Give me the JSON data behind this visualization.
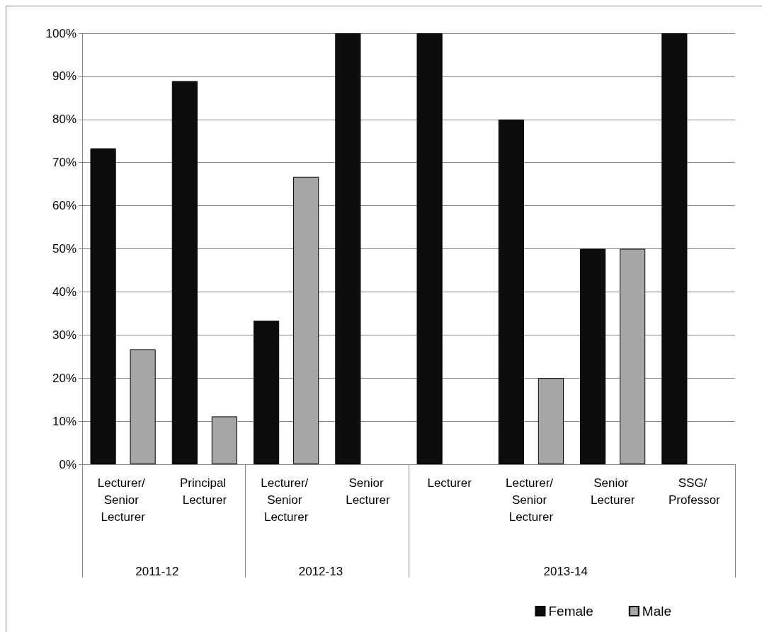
{
  "chart_data": {
    "type": "bar",
    "categories": [
      "Lecturer/ Senior Lecturer",
      "Principal Lecturer",
      "Lecturer/ Senior Lecturer",
      "Senior Lecturer",
      "Lecturer",
      "Lecturer/ Senior Lecturer",
      "Senior Lecturer",
      "SSG/ Professor"
    ],
    "series": [
      {
        "name": "Female",
        "color": "#0d0d0d",
        "values": [
          73.3,
          88.9,
          33.3,
          100,
          100,
          80,
          50,
          100
        ]
      },
      {
        "name": "Male",
        "color": "#a6a6a6",
        "values": [
          26.7,
          11.1,
          66.7,
          null,
          null,
          20,
          50,
          null
        ]
      }
    ],
    "annotations": [
      "2011-12",
      "2012-13",
      "2013-14"
    ],
    "ylim": [
      0,
      100
    ],
    "yticks": [
      {
        "value": 0,
        "label": "0%"
      },
      {
        "value": 10,
        "label": "10%"
      },
      {
        "value": 20,
        "label": "20%"
      },
      {
        "value": 30,
        "label": "30%"
      },
      {
        "value": 40,
        "label": "40%"
      },
      {
        "value": 50,
        "label": "50%"
      },
      {
        "value": 60,
        "label": "60%"
      },
      {
        "value": 70,
        "label": "70%"
      },
      {
        "value": 80,
        "label": "80%"
      },
      {
        "value": 90,
        "label": "90%"
      },
      {
        "value": 100,
        "label": "100%"
      }
    ],
    "grid": "y",
    "legend": "bottom right"
  }
}
